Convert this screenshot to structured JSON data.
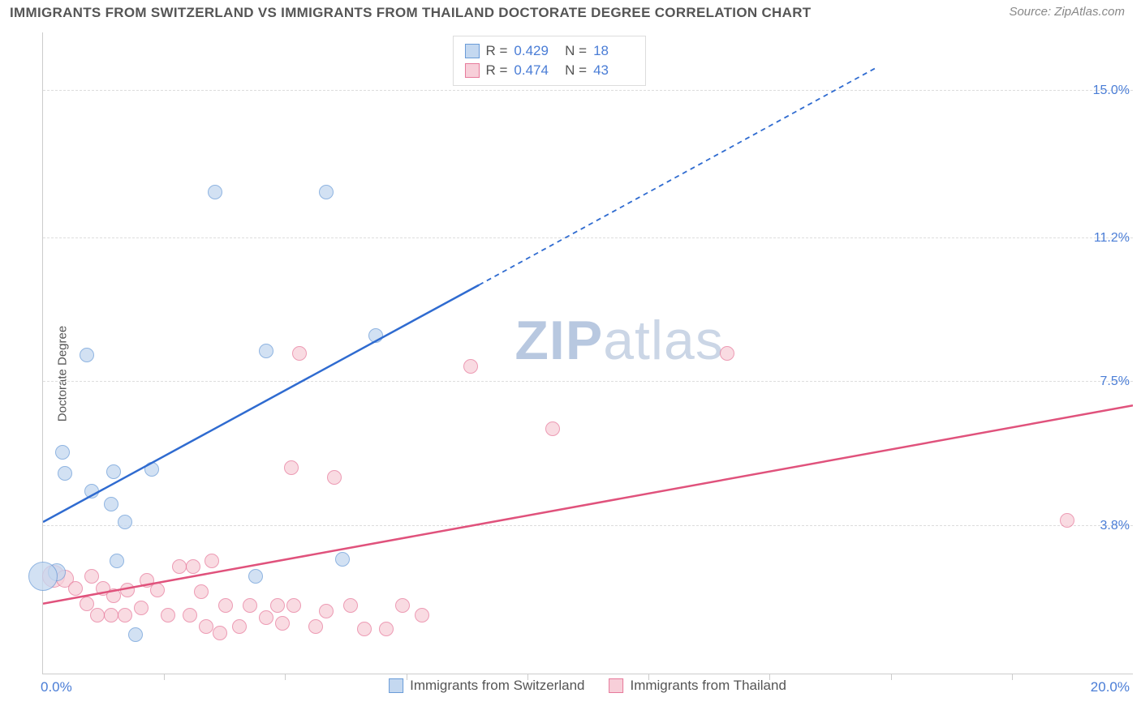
{
  "title": "IMMIGRANTS FROM SWITZERLAND VS IMMIGRANTS FROM THAILAND DOCTORATE DEGREE CORRELATION CHART",
  "source": "Source: ZipAtlas.com",
  "ylabel": "Doctorate Degree",
  "watermark_bold": "ZIP",
  "watermark_light": "atlas",
  "xaxis": {
    "min_label": "0.0%",
    "max_label": "20.0%",
    "min": 0.0,
    "max": 20.0
  },
  "yaxis": {
    "min": 0.0,
    "max": 16.5,
    "ticks": [
      {
        "v": 3.8,
        "label": "3.8%"
      },
      {
        "v": 7.5,
        "label": "7.5%"
      },
      {
        "v": 11.2,
        "label": "11.2%"
      },
      {
        "v": 15.0,
        "label": "15.0%"
      }
    ]
  },
  "xticks": [
    2.22,
    4.44,
    6.67,
    8.89,
    11.11,
    13.33,
    15.56,
    17.78
  ],
  "series": {
    "switzerland": {
      "label": "Immigrants from Switzerland",
      "fill": "#c4d8f0",
      "stroke": "#6a9cd8",
      "line_color": "#2f6bd0",
      "R": "0.429",
      "N": "18",
      "trend": {
        "x1": 0.0,
        "y1": 3.9,
        "x2_solid": 8.0,
        "y2_solid": 10.0,
        "x2_dash": 15.3,
        "y2_dash": 15.6
      },
      "points": [
        {
          "x": 0.25,
          "y": 2.6,
          "r": 11
        },
        {
          "x": 0.0,
          "y": 2.5,
          "r": 18
        },
        {
          "x": 0.35,
          "y": 5.7,
          "r": 9
        },
        {
          "x": 0.4,
          "y": 5.15,
          "r": 9
        },
        {
          "x": 0.8,
          "y": 8.2,
          "r": 9
        },
        {
          "x": 0.9,
          "y": 4.7,
          "r": 9
        },
        {
          "x": 1.25,
          "y": 4.35,
          "r": 9
        },
        {
          "x": 1.3,
          "y": 5.2,
          "r": 9
        },
        {
          "x": 1.5,
          "y": 3.9,
          "r": 9
        },
        {
          "x": 1.35,
          "y": 2.9,
          "r": 9
        },
        {
          "x": 1.7,
          "y": 1.0,
          "r": 9
        },
        {
          "x": 2.0,
          "y": 5.25,
          "r": 9
        },
        {
          "x": 3.15,
          "y": 12.4,
          "r": 9
        },
        {
          "x": 3.9,
          "y": 2.5,
          "r": 9
        },
        {
          "x": 4.1,
          "y": 8.3,
          "r": 9
        },
        {
          "x": 5.2,
          "y": 12.4,
          "r": 9
        },
        {
          "x": 5.5,
          "y": 2.95,
          "r": 9
        },
        {
          "x": 6.1,
          "y": 8.7,
          "r": 9
        }
      ]
    },
    "thailand": {
      "label": "Immigrants from Thailand",
      "fill": "#f7cfd9",
      "stroke": "#e77a9b",
      "line_color": "#e0527c",
      "R": "0.474",
      "N": "43",
      "trend": {
        "x1": 0.0,
        "y1": 1.8,
        "x2": 20.0,
        "y2": 6.9
      },
      "points": [
        {
          "x": 0.2,
          "y": 2.5,
          "r": 14
        },
        {
          "x": 0.4,
          "y": 2.45,
          "r": 11
        },
        {
          "x": 0.6,
          "y": 2.2,
          "r": 9
        },
        {
          "x": 0.8,
          "y": 1.8,
          "r": 9
        },
        {
          "x": 0.9,
          "y": 2.5,
          "r": 9
        },
        {
          "x": 1.0,
          "y": 1.5,
          "r": 9
        },
        {
          "x": 1.1,
          "y": 2.2,
          "r": 9
        },
        {
          "x": 1.25,
          "y": 1.5,
          "r": 9
        },
        {
          "x": 1.3,
          "y": 2.0,
          "r": 9
        },
        {
          "x": 1.5,
          "y": 1.5,
          "r": 9
        },
        {
          "x": 1.55,
          "y": 2.15,
          "r": 9
        },
        {
          "x": 1.8,
          "y": 1.7,
          "r": 9
        },
        {
          "x": 1.9,
          "y": 2.4,
          "r": 9
        },
        {
          "x": 2.1,
          "y": 2.15,
          "r": 9
        },
        {
          "x": 2.3,
          "y": 1.5,
          "r": 9
        },
        {
          "x": 2.5,
          "y": 2.75,
          "r": 9
        },
        {
          "x": 2.7,
          "y": 1.5,
          "r": 9
        },
        {
          "x": 2.75,
          "y": 2.75,
          "r": 9
        },
        {
          "x": 2.9,
          "y": 2.1,
          "r": 9
        },
        {
          "x": 3.0,
          "y": 1.2,
          "r": 9
        },
        {
          "x": 3.1,
          "y": 2.9,
          "r": 9
        },
        {
          "x": 3.25,
          "y": 1.05,
          "r": 9
        },
        {
          "x": 3.35,
          "y": 1.75,
          "r": 9
        },
        {
          "x": 3.6,
          "y": 1.2,
          "r": 9
        },
        {
          "x": 3.8,
          "y": 1.75,
          "r": 9
        },
        {
          "x": 4.1,
          "y": 1.45,
          "r": 9
        },
        {
          "x": 4.3,
          "y": 1.75,
          "r": 9
        },
        {
          "x": 4.4,
          "y": 1.3,
          "r": 9
        },
        {
          "x": 4.55,
          "y": 5.3,
          "r": 9
        },
        {
          "x": 4.6,
          "y": 1.75,
          "r": 9
        },
        {
          "x": 4.7,
          "y": 8.25,
          "r": 9
        },
        {
          "x": 5.0,
          "y": 1.2,
          "r": 9
        },
        {
          "x": 5.2,
          "y": 1.6,
          "r": 9
        },
        {
          "x": 5.35,
          "y": 5.05,
          "r": 9
        },
        {
          "x": 5.65,
          "y": 1.75,
          "r": 9
        },
        {
          "x": 5.9,
          "y": 1.15,
          "r": 9
        },
        {
          "x": 6.3,
          "y": 1.15,
          "r": 9
        },
        {
          "x": 6.6,
          "y": 1.75,
          "r": 9
        },
        {
          "x": 6.95,
          "y": 1.5,
          "r": 9
        },
        {
          "x": 7.85,
          "y": 7.9,
          "r": 9
        },
        {
          "x": 9.35,
          "y": 6.3,
          "r": 9
        },
        {
          "x": 12.55,
          "y": 8.25,
          "r": 9
        },
        {
          "x": 18.8,
          "y": 3.95,
          "r": 9
        }
      ]
    }
  }
}
